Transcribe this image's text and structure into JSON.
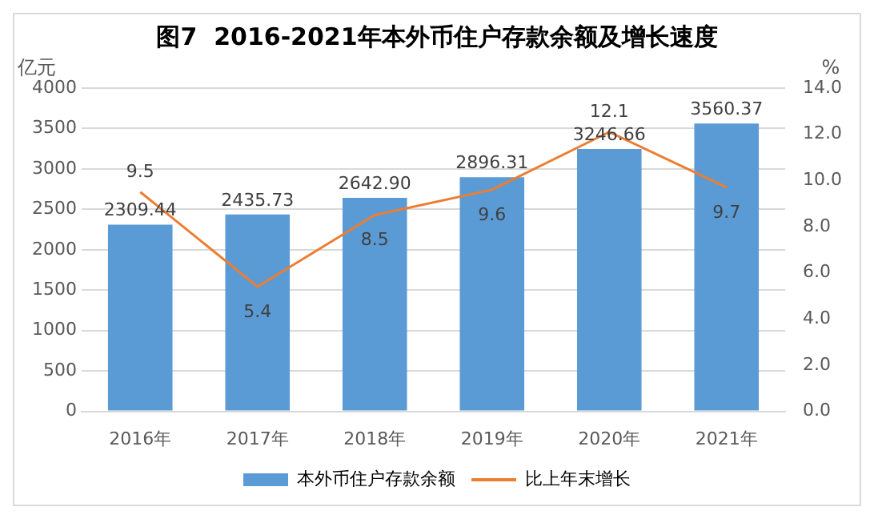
{
  "chart_data": {
    "type": "bar",
    "title": "图7  2016-2021年本外币住户存款余额及增长速度",
    "ylabel": "亿元",
    "y2label": "%",
    "categories": [
      "2016年",
      "2017年",
      "2018年",
      "2019年",
      "2020年",
      "2021年"
    ],
    "series": [
      {
        "name": "本外币住户存款余额",
        "color": "#5b9bd5",
        "values": [
          2309.44,
          2435.73,
          2642.9,
          2896.31,
          3246.66,
          3560.37
        ],
        "value_labels": [
          "2309.44",
          "2435.73",
          "2642.90",
          "2896.31",
          "3246.66",
          "3560.37"
        ]
      },
      {
        "name": "比上年末增长",
        "type": "line",
        "axis": "y2",
        "color": "#ed7d31",
        "values": [
          9.5,
          5.4,
          8.5,
          9.6,
          12.1,
          9.7
        ],
        "value_labels": [
          "9.5",
          "5.4",
          "8.5",
          "9.6",
          "12.1",
          "9.7"
        ]
      }
    ],
    "ylim": [
      0,
      4000
    ],
    "yticks": [
      0,
      500,
      1000,
      1500,
      2000,
      2500,
      3000,
      3500,
      4000
    ],
    "y2lim": [
      0,
      14
    ],
    "y2ticks": [
      {
        "value": 0,
        "label": "0.0"
      },
      {
        "value": 2,
        "label": "2.0"
      },
      {
        "value": 4,
        "label": "4.0"
      },
      {
        "value": 6,
        "label": "6.0"
      },
      {
        "value": 8,
        "label": "8.0"
      },
      {
        "value": 10,
        "label": "10.0"
      },
      {
        "value": 12,
        "label": "12.0"
      },
      {
        "value": 14,
        "label": "14.0"
      }
    ],
    "grid": "y",
    "legend": "bottom",
    "marker": "none",
    "line_style": "solid"
  }
}
